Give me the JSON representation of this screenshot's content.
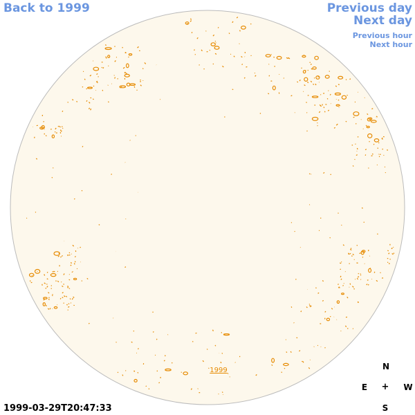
{
  "navigation": {
    "back_label": "Back to 1999",
    "previous_day_label": "Previous day",
    "next_day_label": "Next day",
    "previous_hour_label": "Previous hour",
    "next_hour_label": "Next hour"
  },
  "disk": {
    "year_label": "1999",
    "fill_color": "#fdf8ec",
    "outline_color": "#bbbbbb",
    "contour_color": "#e68a00"
  },
  "compass": {
    "north": "N",
    "east": "E",
    "center": "+",
    "west": "W",
    "south": "S"
  },
  "timestamp": "1999-03-29T20:47:33"
}
